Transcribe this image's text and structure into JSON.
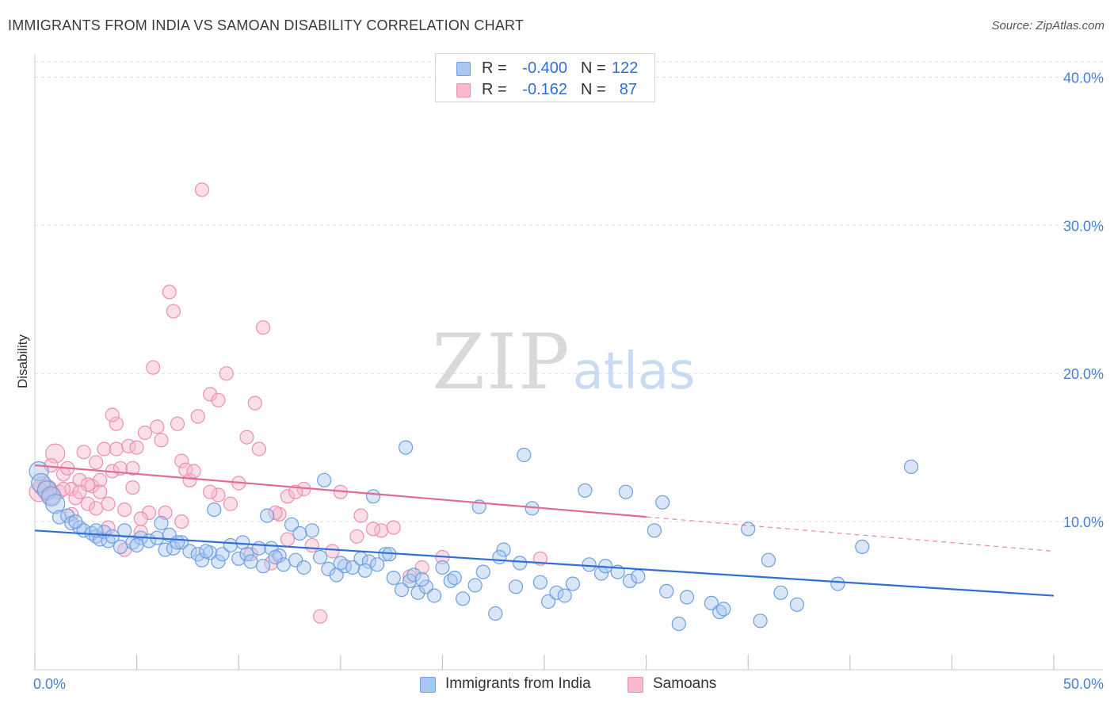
{
  "title": "IMMIGRANTS FROM INDIA VS SAMOAN DISABILITY CORRELATION CHART",
  "source": "Source: ZipAtlas.com",
  "watermark": {
    "zip": "ZIP",
    "atlas": "atlas"
  },
  "colors": {
    "india_fill": "#a9c8f0",
    "india_stroke": "#6f9fe0",
    "india_line": "#2f6fd6",
    "samoa_fill": "#f7b9cc",
    "samoa_stroke": "#ee8fae",
    "samoa_line": "#e06b95",
    "tick_text": "#4a7fd0",
    "grid": "#dddddd"
  },
  "legend_top": {
    "rows": [
      {
        "series": "india",
        "r_label": "R =",
        "r_value": "-0.400",
        "n_label": "N =",
        "n_value": "122"
      },
      {
        "series": "samoa",
        "r_label": "R =",
        "r_value": "-0.162",
        "n_label": "N =",
        "n_value": "87"
      }
    ]
  },
  "legend_bottom": {
    "india": "Immigrants from India",
    "samoa": "Samoans"
  },
  "chart_data": {
    "type": "scatter",
    "title": "IMMIGRANTS FROM INDIA VS SAMOAN DISABILITY CORRELATION CHART",
    "xlabel": "",
    "ylabel": "Disability",
    "xlim": [
      0,
      50
    ],
    "ylim": [
      0,
      42
    ],
    "x_tick_labels": [
      "0.0%",
      "50.0%"
    ],
    "y_ticks": [
      10,
      20,
      30,
      40
    ],
    "y_tick_labels": [
      "10.0%",
      "20.0%",
      "30.0%",
      "40.0%"
    ],
    "grid": "horizontal dashed",
    "legend_placement": "top-center",
    "series": [
      {
        "name": "Immigrants from India",
        "key": "india",
        "r": -0.4,
        "n": 122,
        "trend": {
          "x": [
            0,
            50
          ],
          "y": [
            9.4,
            5.0
          ],
          "dashed_from": null
        },
        "points": [
          [
            0.2,
            13.4
          ],
          [
            0.3,
            12.6
          ],
          [
            0.6,
            12.1
          ],
          [
            0.8,
            11.7
          ],
          [
            1.0,
            11.2
          ],
          [
            1.2,
            10.3
          ],
          [
            1.6,
            10.4
          ],
          [
            1.8,
            9.9
          ],
          [
            2.2,
            9.6
          ],
          [
            2.4,
            9.4
          ],
          [
            2.8,
            9.2
          ],
          [
            3.0,
            9.0
          ],
          [
            3.2,
            8.8
          ],
          [
            3.4,
            9.3
          ],
          [
            3.6,
            8.7
          ],
          [
            3.8,
            9.0
          ],
          [
            4.2,
            8.3
          ],
          [
            4.4,
            9.4
          ],
          [
            4.8,
            8.6
          ],
          [
            5.2,
            8.9
          ],
          [
            5.6,
            8.7
          ],
          [
            6.0,
            8.9
          ],
          [
            6.4,
            8.1
          ],
          [
            6.6,
            9.1
          ],
          [
            6.8,
            8.2
          ],
          [
            7.2,
            8.6
          ],
          [
            7.6,
            8.0
          ],
          [
            8.0,
            7.8
          ],
          [
            8.2,
            7.4
          ],
          [
            8.6,
            7.9
          ],
          [
            9.0,
            7.3
          ],
          [
            9.2,
            7.8
          ],
          [
            9.6,
            8.4
          ],
          [
            10.0,
            7.5
          ],
          [
            10.4,
            7.8
          ],
          [
            10.6,
            7.3
          ],
          [
            11.0,
            8.2
          ],
          [
            11.2,
            7.0
          ],
          [
            11.6,
            8.2
          ],
          [
            12.0,
            7.7
          ],
          [
            12.2,
            7.1
          ],
          [
            12.6,
            9.8
          ],
          [
            12.8,
            7.4
          ],
          [
            13.2,
            6.9
          ],
          [
            13.6,
            9.4
          ],
          [
            14.0,
            7.6
          ],
          [
            14.4,
            6.8
          ],
          [
            14.8,
            6.4
          ],
          [
            15.2,
            7.0
          ],
          [
            15.6,
            6.9
          ],
          [
            16.0,
            7.5
          ],
          [
            16.4,
            7.3
          ],
          [
            16.8,
            7.1
          ],
          [
            17.2,
            7.8
          ],
          [
            17.6,
            6.2
          ],
          [
            18.0,
            5.4
          ],
          [
            18.4,
            6.0
          ],
          [
            18.8,
            5.2
          ],
          [
            19.2,
            5.6
          ],
          [
            19.6,
            5.0
          ],
          [
            20.0,
            6.9
          ],
          [
            20.4,
            6.0
          ],
          [
            21.0,
            4.8
          ],
          [
            21.6,
            5.7
          ],
          [
            22.6,
            3.8
          ],
          [
            23.0,
            8.1
          ],
          [
            23.6,
            5.6
          ],
          [
            24.4,
            10.9
          ],
          [
            24.8,
            5.9
          ],
          [
            25.2,
            4.6
          ],
          [
            25.6,
            5.2
          ],
          [
            26.0,
            5.0
          ],
          [
            27.2,
            7.1
          ],
          [
            27.8,
            6.5
          ],
          [
            28.6,
            6.6
          ],
          [
            29.2,
            6.0
          ],
          [
            30.4,
            9.4
          ],
          [
            31.6,
            3.1
          ],
          [
            33.2,
            4.5
          ],
          [
            33.6,
            3.9
          ],
          [
            33.8,
            4.1
          ],
          [
            35.0,
            9.5
          ],
          [
            35.6,
            3.3
          ],
          [
            36.0,
            7.4
          ],
          [
            36.6,
            5.2
          ],
          [
            37.4,
            4.4
          ],
          [
            39.4,
            5.8
          ],
          [
            40.6,
            8.3
          ],
          [
            43.0,
            13.7
          ],
          [
            2.0,
            10.0
          ],
          [
            3.0,
            9.4
          ],
          [
            5.0,
            8.4
          ],
          [
            7.0,
            8.6
          ],
          [
            8.4,
            8.0
          ],
          [
            10.2,
            8.6
          ],
          [
            11.8,
            7.6
          ],
          [
            13.0,
            9.2
          ],
          [
            15.0,
            7.2
          ],
          [
            16.2,
            6.7
          ],
          [
            17.4,
            7.8
          ],
          [
            18.6,
            6.4
          ],
          [
            19.0,
            6.1
          ],
          [
            20.6,
            6.2
          ],
          [
            22.0,
            6.6
          ],
          [
            22.8,
            7.6
          ],
          [
            23.8,
            7.2
          ],
          [
            26.4,
            5.8
          ],
          [
            28.0,
            7.0
          ],
          [
            29.6,
            6.3
          ],
          [
            31.0,
            5.3
          ],
          [
            32.0,
            4.9
          ],
          [
            6.2,
            9.9
          ],
          [
            8.8,
            10.8
          ],
          [
            11.4,
            10.4
          ],
          [
            14.2,
            12.8
          ],
          [
            16.6,
            11.7
          ],
          [
            18.2,
            15.0
          ],
          [
            21.8,
            11.0
          ],
          [
            24.0,
            14.5
          ],
          [
            27.0,
            12.1
          ],
          [
            29.0,
            12.0
          ],
          [
            30.8,
            11.3
          ]
        ]
      },
      {
        "name": "Samoans",
        "key": "samoa",
        "r": -0.162,
        "n": 87,
        "trend": {
          "x": [
            0,
            50
          ],
          "y": [
            13.8,
            8.0
          ],
          "solid_until": 30
        },
        "points": [
          [
            0.2,
            12.0
          ],
          [
            0.4,
            12.4
          ],
          [
            0.6,
            12.2
          ],
          [
            0.8,
            11.8
          ],
          [
            1.0,
            14.6
          ],
          [
            1.2,
            12.0
          ],
          [
            1.4,
            13.2
          ],
          [
            1.6,
            13.6
          ],
          [
            1.8,
            12.2
          ],
          [
            2.0,
            11.6
          ],
          [
            2.2,
            12.8
          ],
          [
            2.4,
            14.7
          ],
          [
            2.6,
            11.2
          ],
          [
            2.8,
            12.4
          ],
          [
            3.0,
            14.0
          ],
          [
            3.2,
            12.8
          ],
          [
            3.4,
            14.9
          ],
          [
            3.6,
            11.2
          ],
          [
            3.8,
            13.4
          ],
          [
            4.0,
            14.9
          ],
          [
            4.2,
            13.6
          ],
          [
            4.4,
            8.1
          ],
          [
            4.6,
            15.1
          ],
          [
            4.8,
            12.3
          ],
          [
            5.0,
            15.0
          ],
          [
            5.2,
            9.3
          ],
          [
            5.4,
            16.0
          ],
          [
            5.6,
            10.6
          ],
          [
            6.0,
            16.4
          ],
          [
            6.2,
            15.5
          ],
          [
            7.0,
            16.6
          ],
          [
            7.2,
            14.1
          ],
          [
            7.4,
            13.5
          ],
          [
            7.6,
            12.8
          ],
          [
            8.0,
            17.1
          ],
          [
            8.2,
            32.4
          ],
          [
            8.6,
            18.6
          ],
          [
            9.0,
            11.8
          ],
          [
            9.4,
            20.0
          ],
          [
            10.0,
            12.6
          ],
          [
            10.4,
            15.7
          ],
          [
            11.0,
            14.9
          ],
          [
            11.2,
            23.1
          ],
          [
            12.0,
            10.5
          ],
          [
            12.4,
            11.7
          ],
          [
            13.2,
            12.2
          ],
          [
            14.0,
            3.6
          ],
          [
            15.0,
            12.0
          ],
          [
            16.0,
            10.4
          ],
          [
            17.0,
            9.4
          ],
          [
            17.6,
            9.6
          ],
          [
            18.4,
            6.3
          ],
          [
            19.0,
            6.9
          ],
          [
            20.0,
            7.6
          ],
          [
            6.8,
            24.2
          ],
          [
            6.6,
            25.5
          ],
          [
            5.8,
            20.4
          ],
          [
            4.0,
            16.6
          ],
          [
            3.8,
            17.2
          ],
          [
            2.6,
            12.5
          ],
          [
            1.8,
            10.5
          ],
          [
            1.4,
            12.2
          ],
          [
            0.8,
            13.8
          ],
          [
            2.2,
            12.0
          ],
          [
            3.0,
            10.9
          ],
          [
            3.6,
            9.6
          ],
          [
            4.4,
            10.8
          ],
          [
            5.2,
            10.2
          ],
          [
            6.4,
            10.6
          ],
          [
            7.2,
            10.0
          ],
          [
            7.8,
            13.4
          ],
          [
            8.6,
            12.0
          ],
          [
            9.6,
            11.2
          ],
          [
            10.6,
            7.8
          ],
          [
            11.6,
            7.2
          ],
          [
            12.4,
            8.8
          ],
          [
            13.6,
            8.4
          ],
          [
            14.6,
            8.0
          ],
          [
            15.8,
            9.0
          ],
          [
            16.6,
            9.5
          ],
          [
            9.0,
            18.2
          ],
          [
            10.8,
            18.0
          ],
          [
            12.8,
            12.0
          ],
          [
            3.2,
            12.0
          ],
          [
            4.8,
            13.6
          ],
          [
            24.8,
            7.5
          ],
          [
            11.8,
            10.6
          ]
        ]
      }
    ]
  }
}
